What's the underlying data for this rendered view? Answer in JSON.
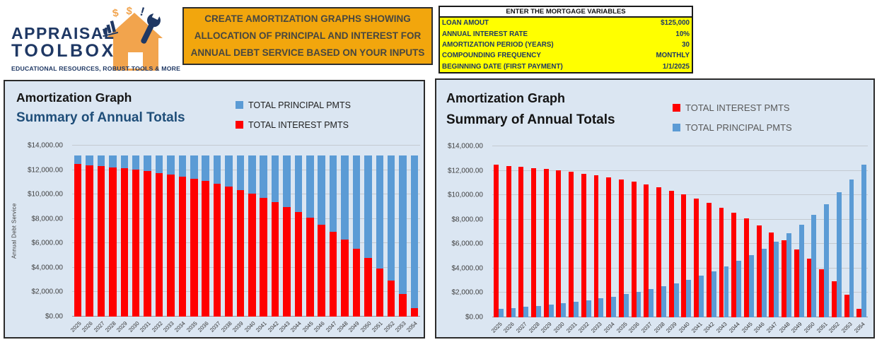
{
  "header": {
    "logo": {
      "line1": "APPRAISAL",
      "line2": "TOOLBOX",
      "tagline": "EDUCATIONAL RESOURCES, ROBUST TOOLS & MORE"
    },
    "instruction_box": {
      "lines": [
        "CREATE AMORTIZATION GRAPHS SHOWING",
        "ALLOCATION OF PRINCIPAL AND INTEREST FOR",
        "ANNUAL DEBT SERVICE BASED ON YOUR INPUTS"
      ]
    },
    "variables_table": {
      "title": "ENTER THE MORTGAGE VARIABLES",
      "rows": [
        {
          "label": "LOAN AMOUT",
          "value": "$125,000"
        },
        {
          "label": "ANNUAL INTEREST RATE",
          "value": "10%"
        },
        {
          "label": "AMORTIZATION PERIOD (YEARS)",
          "value": "30"
        },
        {
          "label": "COMPOUNDING FREQUENCY",
          "value": "MONTHLY"
        },
        {
          "label": "BEGINNING DATE (FIRST PAYMENT)",
          "value": "1/1/2025"
        }
      ]
    }
  },
  "colors": {
    "brand_navy": "#1F3864",
    "brand_orange": "#F2A60D",
    "house_orange": "#F2A44D",
    "input_yellow": "#FFFF00",
    "chart_background": "#DBE6F2",
    "interest_red": "#FF0000",
    "principal_blue": "#5B9BD5",
    "gridline_gray": "#C3C9D0",
    "subtitle_navy": "#1F4E79"
  },
  "chart_data": [
    {
      "type": "bar",
      "variant": "stacked",
      "title": "Amortization Graph",
      "subtitle": "Summary of Annual Totals",
      "ylabel": "Annual Debt Service",
      "xlabel": "",
      "ylim": [
        0,
        14000
      ],
      "ytick_step": 2000,
      "y_tick_labels": [
        "$0.00",
        "$2,000.00",
        "$4,000.00",
        "$6,000.00",
        "$8,000.00",
        "$10,000.00",
        "$12,000.00",
        "$14,000.00"
      ],
      "grid": true,
      "legend_position": "top-right",
      "legend": [
        {
          "label": "TOTAL PRINCIPAL PMTS",
          "color": "#5B9BD5"
        },
        {
          "label": "TOTAL INTEREST PMTS",
          "color": "#FF0000"
        }
      ],
      "categories": [
        "2025",
        "2026",
        "2027",
        "2028",
        "2029",
        "2030",
        "2031",
        "2032",
        "2033",
        "2034",
        "2035",
        "2036",
        "2037",
        "2038",
        "2039",
        "2040",
        "2041",
        "2042",
        "2043",
        "2044",
        "2045",
        "2046",
        "2047",
        "2048",
        "2049",
        "2050",
        "2051",
        "2052",
        "2053",
        "2054"
      ],
      "series": [
        {
          "name": "TOTAL INTEREST PMTS",
          "color": "#FF0000",
          "values": [
            12468.73,
            12395.96,
            12315.58,
            12226.78,
            12128.68,
            12020.31,
            11900.59,
            11768.33,
            11622.22,
            11460.81,
            11282.5,
            11085.52,
            10867.91,
            10627.52,
            10361.95,
            10068.58,
            9744.49,
            9386.45,
            8990.91,
            8553.96,
            8071.26,
            7538.01,
            6948.92,
            6298.14,
            5579.21,
            4785.0,
            3907.63,
            2938.39,
            1867.66,
            684.81
          ]
        },
        {
          "name": "TOTAL PRINCIPAL PMTS",
          "color": "#5B9BD5",
          "values": [
            694.86,
            767.63,
            848.01,
            936.81,
            1034.91,
            1143.28,
            1263.0,
            1395.26,
            1541.37,
            1702.78,
            1881.09,
            2078.07,
            2295.68,
            2536.07,
            2801.64,
            3095.01,
            3419.1,
            3777.14,
            4172.68,
            4609.63,
            5092.33,
            5625.58,
            6214.67,
            6865.45,
            7584.38,
            8378.59,
            9255.96,
            10225.2,
            11295.93,
            12478.78
          ]
        }
      ]
    },
    {
      "type": "bar",
      "variant": "clustered",
      "title": "Amortization Graph",
      "subtitle": "Summary of Annual Totals",
      "ylabel": "",
      "xlabel": "",
      "ylim": [
        0,
        14000
      ],
      "ytick_step": 2000,
      "y_tick_labels": [
        "$0.00",
        "$2,000.00",
        "$4,000.00",
        "$6,000.00",
        "$8,000.00",
        "$10,000.00",
        "$12,000.00",
        "$14,000.00"
      ],
      "grid": true,
      "legend_position": "top-right",
      "legend": [
        {
          "label": "TOTAL INTEREST PMTS",
          "color": "#FF0000"
        },
        {
          "label": "TOTAL PRINCIPAL PMTS",
          "color": "#5B9BD5"
        }
      ],
      "categories": [
        "2025",
        "2026",
        "2027",
        "2028",
        "2029",
        "2030",
        "2031",
        "2032",
        "2033",
        "2034",
        "2035",
        "2036",
        "2037",
        "2038",
        "2039",
        "2040",
        "2041",
        "2042",
        "2043",
        "2044",
        "2045",
        "2046",
        "2047",
        "2048",
        "2049",
        "2050",
        "2051",
        "2052",
        "2053",
        "2054"
      ],
      "series": [
        {
          "name": "TOTAL INTEREST PMTS",
          "color": "#FF0000",
          "values": [
            12468.73,
            12395.96,
            12315.58,
            12226.78,
            12128.68,
            12020.31,
            11900.59,
            11768.33,
            11622.22,
            11460.81,
            11282.5,
            11085.52,
            10867.91,
            10627.52,
            10361.95,
            10068.58,
            9744.49,
            9386.45,
            8990.91,
            8553.96,
            8071.26,
            7538.01,
            6948.92,
            6298.14,
            5579.21,
            4785.0,
            3907.63,
            2938.39,
            1867.66,
            684.81
          ]
        },
        {
          "name": "TOTAL PRINCIPAL PMTS",
          "color": "#5B9BD5",
          "values": [
            694.86,
            767.63,
            848.01,
            936.81,
            1034.91,
            1143.28,
            1263.0,
            1395.26,
            1541.37,
            1702.78,
            1881.09,
            2078.07,
            2295.68,
            2536.07,
            2801.64,
            3095.01,
            3419.1,
            3777.14,
            4172.68,
            4609.63,
            5092.33,
            5625.58,
            6214.67,
            6865.45,
            7584.38,
            8378.59,
            9255.96,
            10225.2,
            11295.93,
            12478.78
          ]
        }
      ]
    }
  ]
}
